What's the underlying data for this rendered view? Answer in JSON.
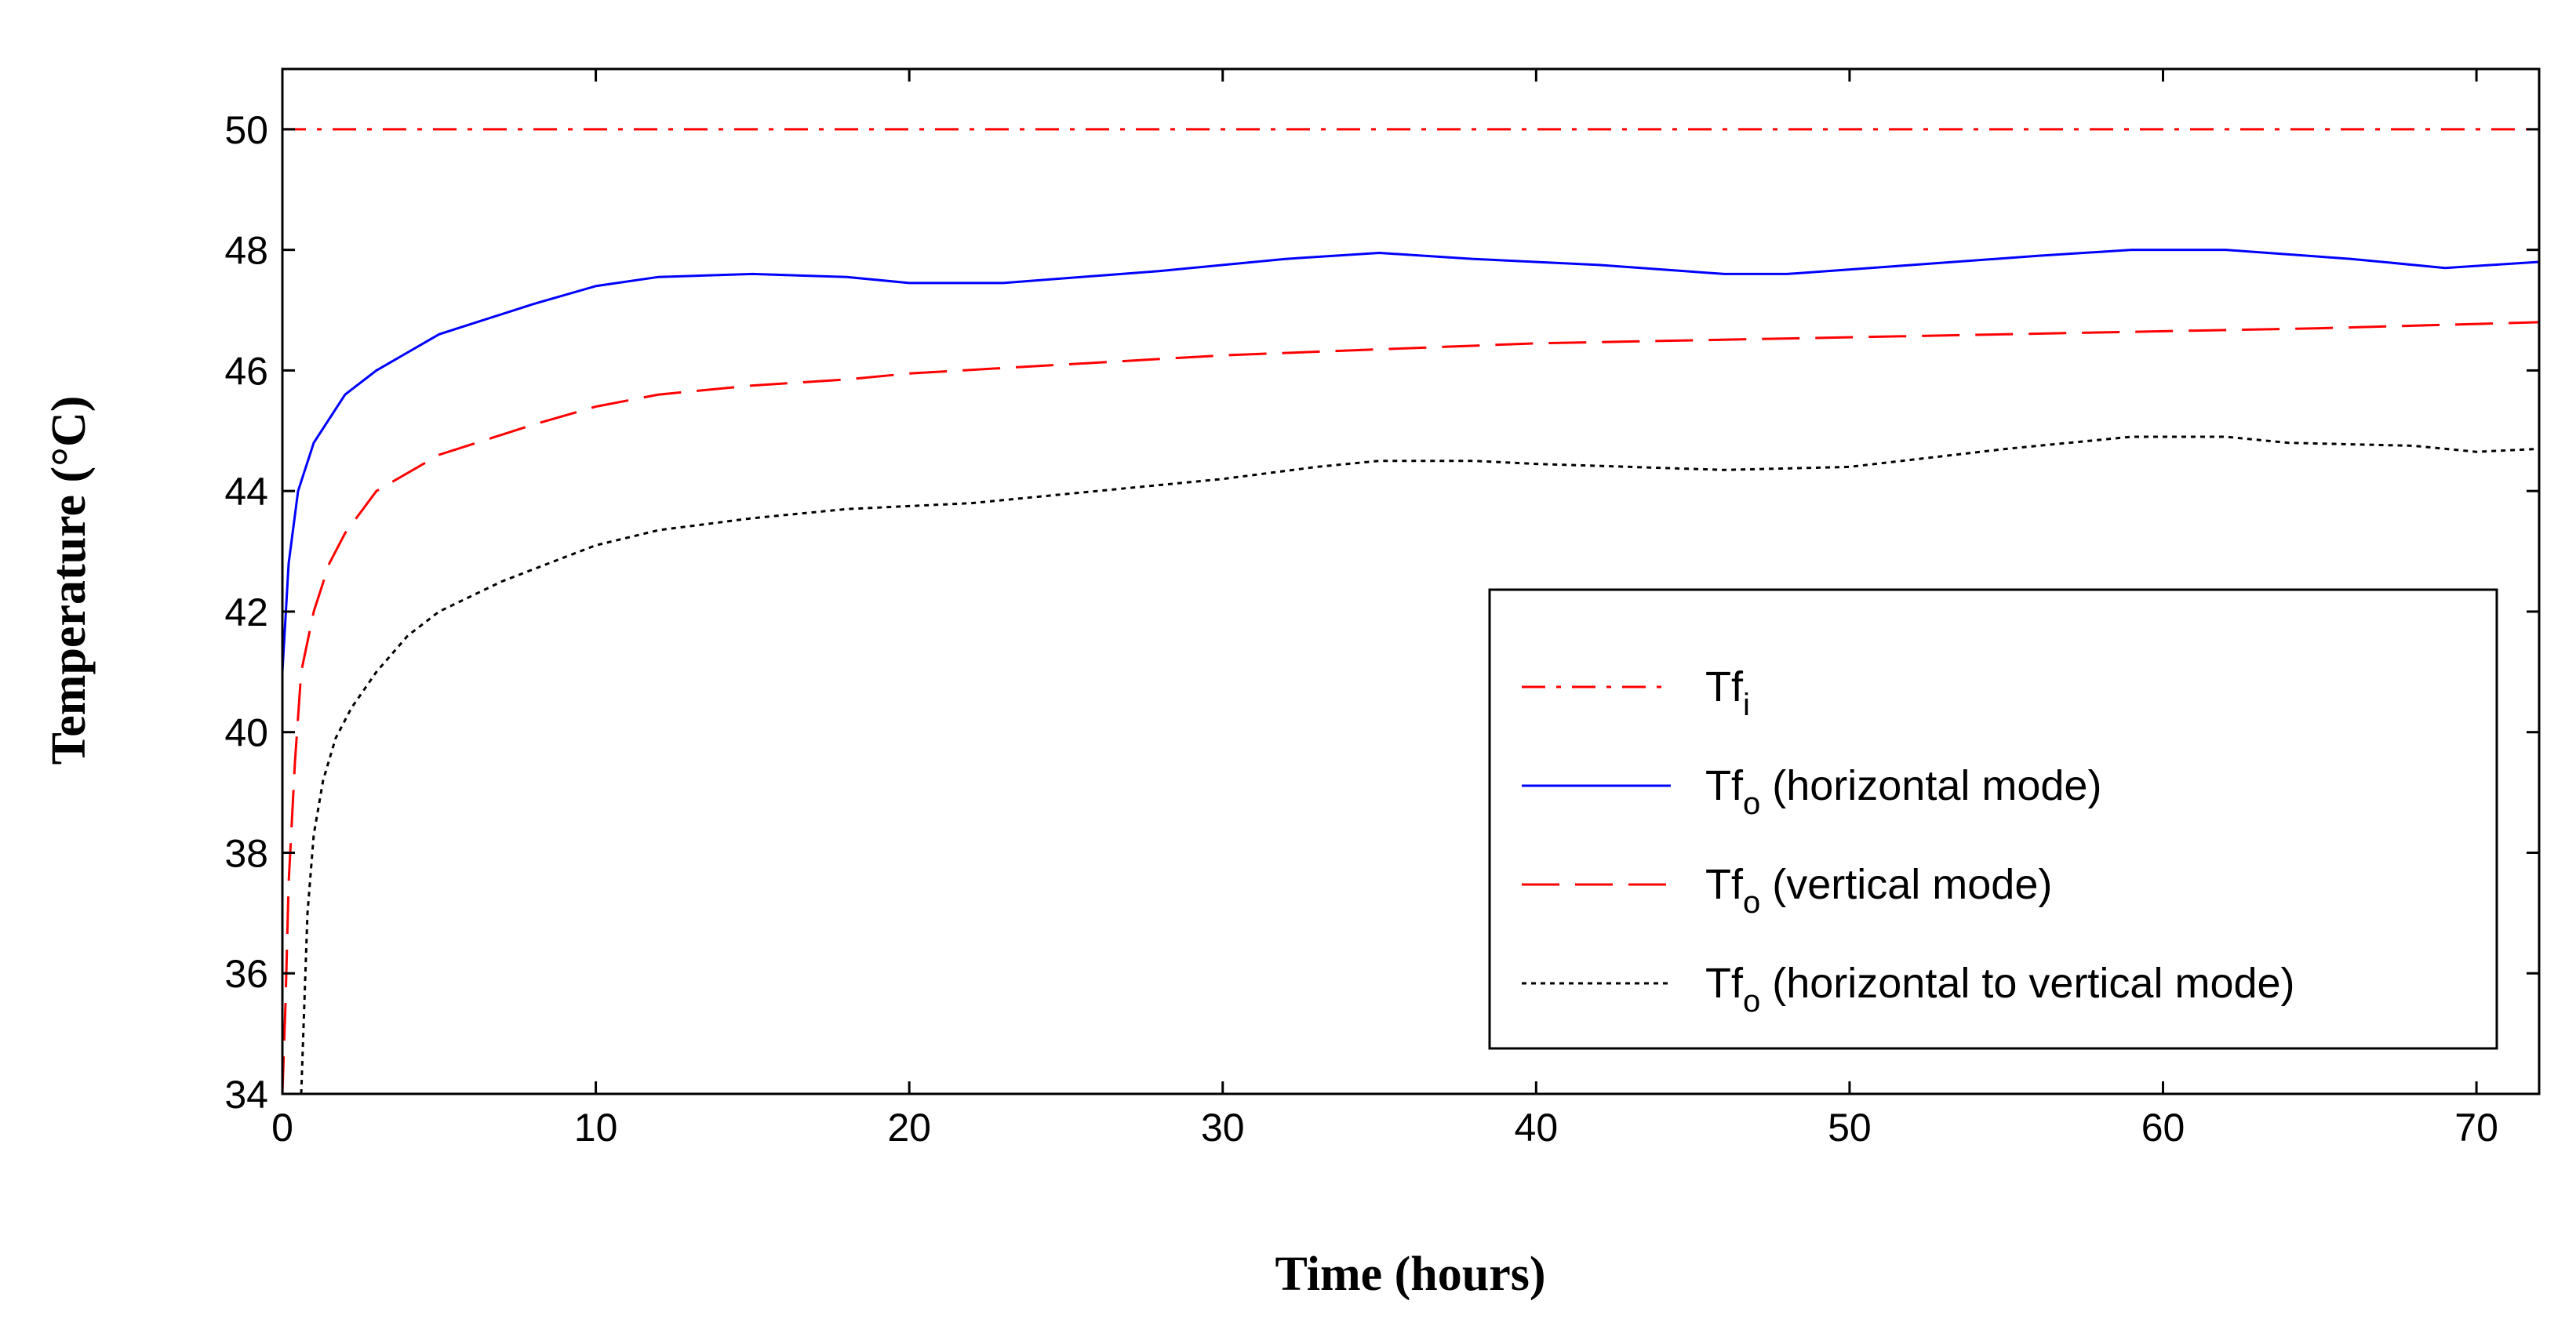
{
  "chart_data": {
    "type": "line",
    "title": "",
    "xlabel": "Time (hours)",
    "ylabel": "Temperature (°C)",
    "xlim": [
      0,
      72
    ],
    "ylim": [
      34,
      51
    ],
    "xticks": [
      0,
      10,
      20,
      30,
      40,
      50,
      60,
      70
    ],
    "yticks": [
      34,
      36,
      38,
      40,
      42,
      44,
      46,
      48,
      50
    ],
    "grid": false,
    "legend_position": "bottom-right",
    "series": [
      {
        "name": "Tfi",
        "legend_main": "Tf",
        "legend_sub": "i",
        "legend_suffix": "",
        "color": "#ff0000",
        "style": "dash-dot",
        "x": [
          0,
          72
        ],
        "y": [
          50,
          50
        ]
      },
      {
        "name": "Tfo (horizontal mode)",
        "legend_main": "Tf",
        "legend_sub": "o",
        "legend_suffix": " (horizontal mode)",
        "color": "#0000ff",
        "style": "solid",
        "x": [
          0,
          0.2,
          0.5,
          1,
          2,
          3,
          5,
          8,
          10,
          12,
          15,
          18,
          20,
          23,
          28,
          32,
          35,
          38,
          42,
          46,
          48,
          52,
          56,
          59,
          62,
          66,
          69,
          72
        ],
        "y": [
          41.0,
          42.8,
          44.0,
          44.8,
          45.6,
          46.0,
          46.6,
          47.1,
          47.4,
          47.55,
          47.6,
          47.55,
          47.45,
          47.45,
          47.65,
          47.85,
          47.95,
          47.85,
          47.75,
          47.6,
          47.6,
          47.75,
          47.9,
          48.0,
          48.0,
          47.85,
          47.7,
          47.8
        ]
      },
      {
        "name": "Tfo (vertical mode)",
        "legend_main": "Tf",
        "legend_sub": "o",
        "legend_suffix": " (vertical mode)",
        "color": "#ff0000",
        "style": "dashed",
        "x": [
          0,
          0.1,
          0.2,
          0.4,
          0.6,
          1,
          1.5,
          2,
          3,
          5,
          8,
          10,
          12,
          15,
          18,
          20,
          25,
          30,
          35,
          40,
          45,
          50,
          55,
          60,
          65,
          72
        ],
        "y": [
          34.0,
          35.5,
          37.5,
          39.5,
          41.0,
          42.0,
          42.8,
          43.3,
          44.0,
          44.6,
          45.1,
          45.4,
          45.6,
          45.75,
          45.85,
          45.95,
          46.1,
          46.25,
          46.35,
          46.45,
          46.5,
          46.55,
          46.6,
          46.65,
          46.7,
          46.8
        ]
      },
      {
        "name": "Tfo (horizontal to vertical mode)",
        "legend_main": "Tf",
        "legend_sub": "o",
        "legend_suffix": " (horizontal to vertical mode)",
        "color": "#000000",
        "style": "dotted",
        "x": [
          0.6,
          0.7,
          0.8,
          1.0,
          1.3,
          1.7,
          2.2,
          3,
          4,
          5,
          7,
          9,
          10,
          12,
          15,
          18,
          20,
          22,
          25,
          28,
          30,
          33,
          35,
          38,
          40,
          43,
          46,
          50,
          55,
          59,
          62,
          64,
          68,
          70,
          72
        ],
        "y": [
          34.0,
          35.5,
          37.0,
          38.3,
          39.2,
          39.9,
          40.4,
          41.0,
          41.6,
          42.0,
          42.5,
          42.9,
          43.1,
          43.35,
          43.55,
          43.7,
          43.75,
          43.8,
          43.95,
          44.1,
          44.2,
          44.4,
          44.5,
          44.5,
          44.45,
          44.4,
          44.35,
          44.4,
          44.7,
          44.9,
          44.9,
          44.8,
          44.75,
          44.65,
          44.7
        ]
      }
    ]
  }
}
